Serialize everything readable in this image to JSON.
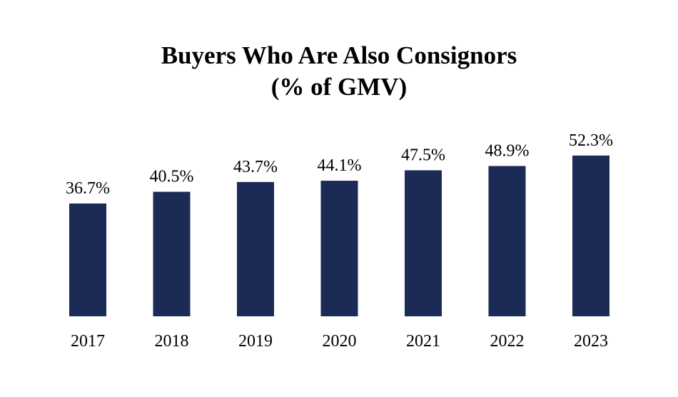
{
  "chart_data": {
    "type": "bar",
    "title_line1": "Buyers Who Are Also Consignors",
    "title_line2": "(% of GMV)",
    "xlabel": "",
    "ylabel": "",
    "categories": [
      "2017",
      "2018",
      "2019",
      "2020",
      "2021",
      "2022",
      "2023"
    ],
    "values": [
      36.7,
      40.5,
      43.7,
      44.1,
      47.5,
      48.9,
      52.3
    ],
    "data_labels": [
      "36.7%",
      "40.5%",
      "43.7%",
      "44.1%",
      "47.5%",
      "48.9%",
      "52.3%"
    ],
    "ylim": [
      0,
      100
    ],
    "grid": false,
    "legend": "none",
    "bar_color": "#1c2a56"
  }
}
